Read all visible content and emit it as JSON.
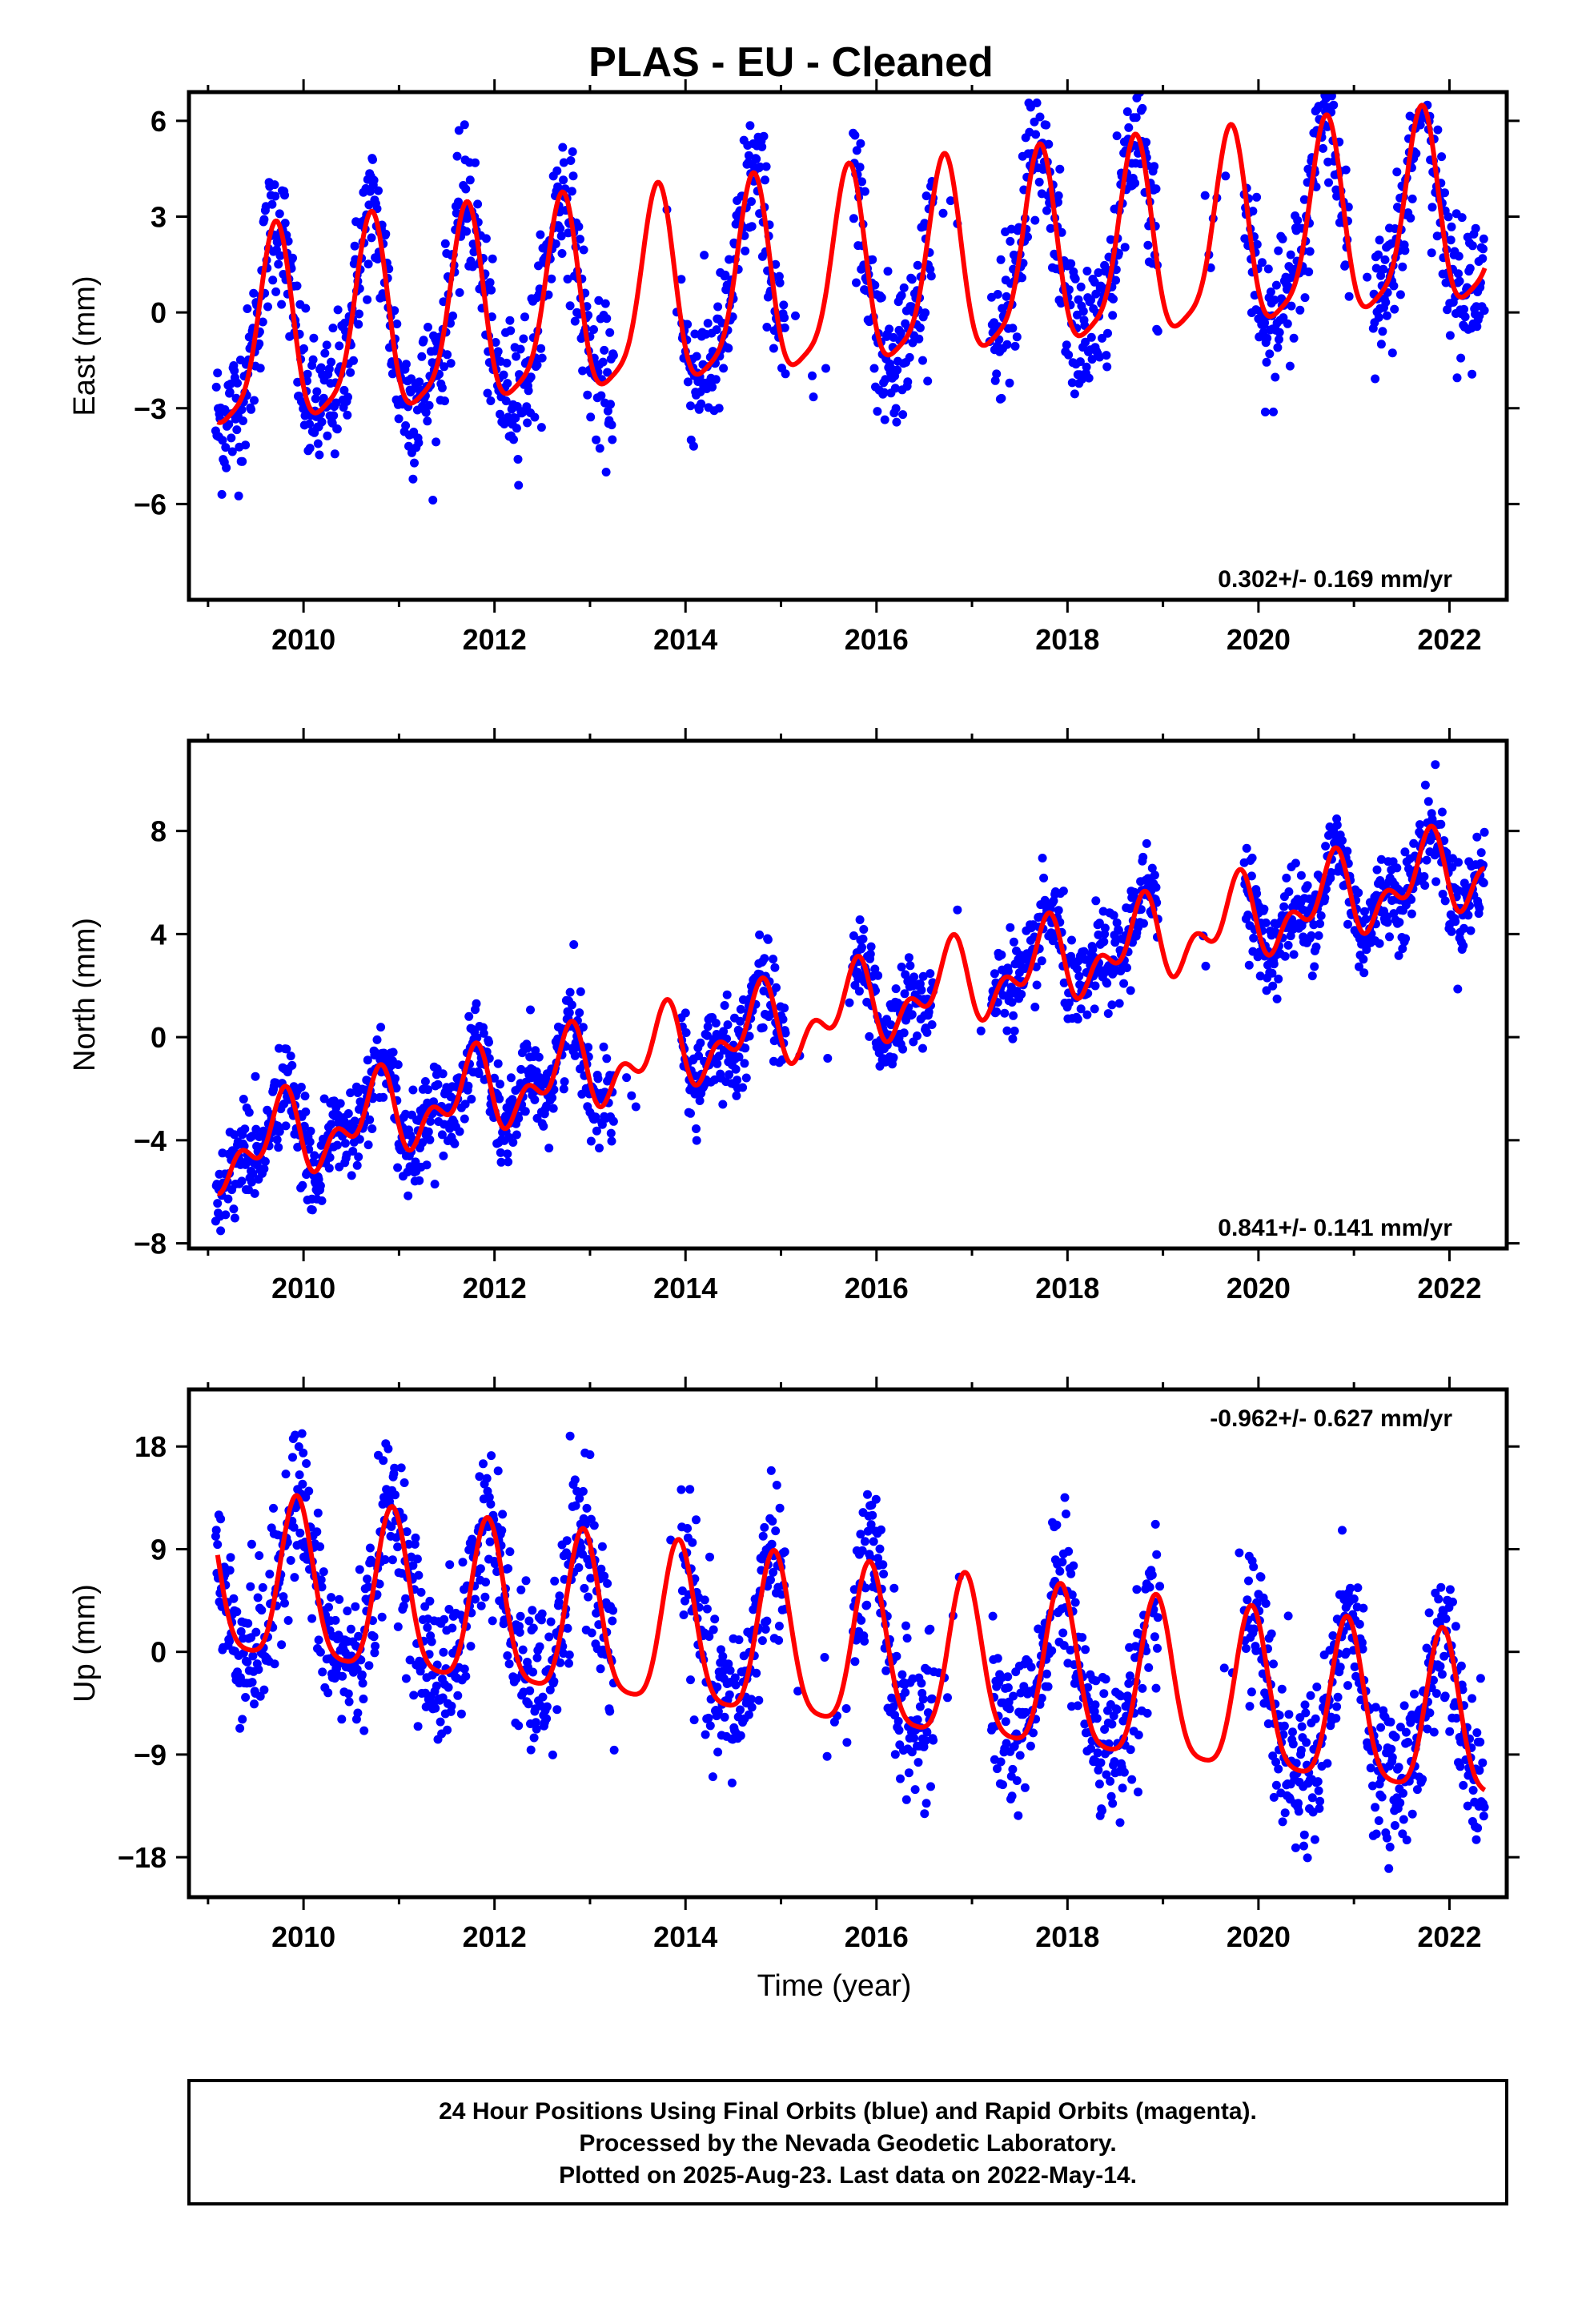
{
  "title": "PLAS  - EU - Cleaned",
  "xlabel": "Time (year)",
  "footer": {
    "line1": "24 Hour Positions Using Final Orbits (blue) and Rapid Orbits (magenta).",
    "line2": "Processed by the Nevada Geodetic Laboratory.",
    "line3": "Plotted on 2025-Aug-23. Last data on 2022-May-14."
  },
  "colors": {
    "data": "#0000ff",
    "model": "#ff0000",
    "frame": "#000000"
  },
  "chart_data": [
    {
      "type": "scatter",
      "ylabel": "East (mm)",
      "rate": "0.302+/- 0.169 mm/yr",
      "rate_position": "bottom-right",
      "xlim": [
        2008.8,
        2022.6
      ],
      "ylim": [
        -9,
        6.9
      ],
      "xticks": [
        2010,
        2012,
        2014,
        2016,
        2018,
        2020,
        2022
      ],
      "yticks": [
        -6,
        -3,
        0,
        3,
        6
      ],
      "model": {
        "rate": 0.302,
        "offset": -1.0,
        "amp": 3.0,
        "phase": 0.45,
        "amp2": 0.7,
        "phase2": 0.1
      },
      "gaps": [
        [
          2013.25,
          2013.95
        ],
        [
          2015.05,
          2015.75
        ],
        [
          2016.6,
          2017.2
        ],
        [
          2018.95,
          2019.85
        ],
        [
          2020.95,
          2021.2
        ]
      ],
      "series": [
        {
          "values": [],
          "source": "scatter"
        },
        {
          "values": [],
          "source": "model"
        }
      ]
    },
    {
      "type": "scatter",
      "ylabel": "North (mm)",
      "rate": "0.841+/- 0.141 mm/yr",
      "rate_position": "bottom-right",
      "xlim": [
        2008.8,
        2022.6
      ],
      "ylim": [
        -8.2,
        11.5
      ],
      "xticks": [
        2010,
        2012,
        2014,
        2016,
        2018,
        2020,
        2022
      ],
      "yticks": [
        -8,
        -4,
        0,
        4,
        8
      ],
      "model": {
        "rate": 0.841,
        "offset": -4.5,
        "amp": 1.2,
        "phase": 0.5,
        "amp2": 0.9,
        "phase2": 0.2
      },
      "gaps": [
        [
          2013.25,
          2013.95
        ],
        [
          2015.05,
          2015.75
        ],
        [
          2016.6,
          2017.2
        ],
        [
          2018.95,
          2019.85
        ]
      ],
      "series": [
        {
          "values": [],
          "source": "scatter"
        },
        {
          "values": [],
          "source": "model"
        }
      ]
    },
    {
      "type": "scatter",
      "ylabel": "Up (mm)",
      "rate": "-0.962+/- 0.627 mm/yr",
      "rate_position": "top-right",
      "xlim": [
        2008.8,
        2022.6
      ],
      "ylim": [
        -21.5,
        23
      ],
      "xticks": [
        2010,
        2012,
        2014,
        2016,
        2018,
        2020,
        2022
      ],
      "yticks": [
        -18,
        -9,
        0,
        9,
        18
      ],
      "model": {
        "rate": -0.962,
        "offset": 6.0,
        "amp": 7.0,
        "phase": 0.68,
        "amp2": 1.5,
        "phase2": 0.3
      },
      "gaps": [
        [
          2013.25,
          2013.95
        ],
        [
          2015.05,
          2015.75
        ],
        [
          2016.6,
          2017.2
        ],
        [
          2018.95,
          2019.85
        ]
      ],
      "series": [
        {
          "values": [],
          "source": "scatter"
        },
        {
          "values": [],
          "source": "model"
        }
      ]
    }
  ]
}
